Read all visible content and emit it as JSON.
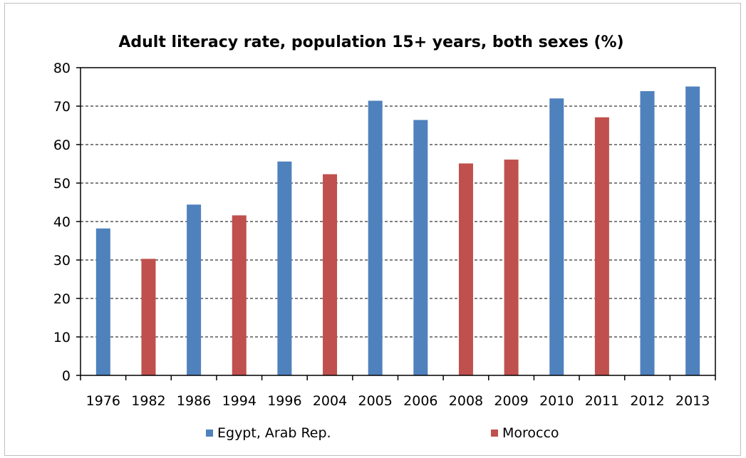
{
  "chart_data": {
    "type": "bar",
    "title": "Adult literacy rate, population 15+ years, both sexes (%)",
    "xlabel": "",
    "ylabel": "",
    "ylim": [
      0,
      80
    ],
    "yticks": [
      0,
      10,
      20,
      30,
      40,
      50,
      60,
      70,
      80
    ],
    "grid": "horizontal dashed",
    "legend_position": "bottom",
    "categories": [
      "1976",
      "1982",
      "1986",
      "1994",
      "1996",
      "2004",
      "2005",
      "2006",
      "2008",
      "2009",
      "2010",
      "2011",
      "2012",
      "2013"
    ],
    "series": [
      {
        "name": "Egypt, Arab Rep.",
        "color": "#4f81bd",
        "values": [
          38.2,
          null,
          44.4,
          null,
          55.6,
          null,
          71.4,
          66.4,
          null,
          null,
          72.0,
          null,
          73.9,
          75.1
        ]
      },
      {
        "name": "Morocco",
        "color": "#c0504d",
        "values": [
          null,
          30.3,
          null,
          41.6,
          null,
          52.3,
          null,
          null,
          55.1,
          56.1,
          null,
          67.1,
          null,
          null
        ]
      }
    ]
  }
}
